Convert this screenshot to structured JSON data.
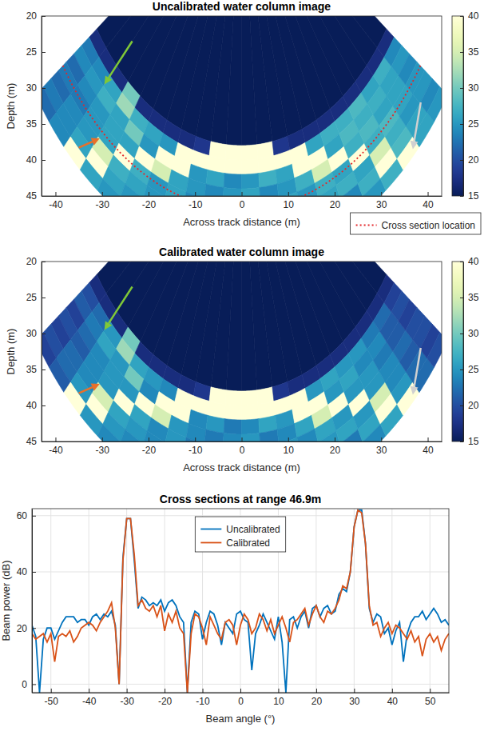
{
  "chart_data": [
    {
      "type": "heatmap",
      "title": "Uncalibrated water column image",
      "x_label": "Across track distance (m)",
      "y_label": "Depth (m)",
      "xlim": [
        -43,
        43
      ],
      "ylim": [
        45,
        20
      ],
      "xticks": [
        -40,
        -30,
        -20,
        -10,
        0,
        10,
        20,
        30,
        40
      ],
      "yticks": [
        20,
        25,
        30,
        35,
        40,
        45
      ],
      "angle_bins": [
        -55,
        -50,
        -45,
        -40,
        -35,
        -30,
        -25,
        -20,
        -15,
        -10,
        -5,
        0,
        5,
        10,
        15,
        20,
        25,
        30,
        35,
        40,
        45,
        50,
        55
      ],
      "range_bins": [
        20,
        38,
        40,
        42,
        44,
        46,
        48,
        50,
        52,
        54
      ],
      "values": [
        [
          15,
          15,
          15,
          15,
          15,
          15,
          15,
          15,
          15,
          15,
          15,
          15,
          15,
          15,
          15,
          15,
          15,
          15,
          15,
          15,
          15,
          15
        ],
        [
          17,
          17,
          17,
          30,
          17,
          17,
          17,
          17,
          18,
          55,
          55,
          55,
          55,
          18,
          17,
          17,
          17,
          17,
          17,
          17,
          17,
          17
        ],
        [
          23,
          24,
          26,
          32,
          27,
          26,
          25,
          55,
          55,
          55,
          55,
          55,
          55,
          55,
          55,
          26,
          27,
          27,
          28,
          26,
          27,
          24
        ],
        [
          24,
          25,
          27,
          26,
          30,
          25,
          55,
          55,
          25,
          26,
          24,
          25,
          27,
          26,
          55,
          55,
          26,
          28,
          27,
          27,
          26,
          25
        ],
        [
          22,
          24,
          25,
          26,
          26,
          55,
          35,
          26,
          25,
          24,
          25,
          26,
          24,
          25,
          27,
          35,
          55,
          27,
          28,
          26,
          26,
          24
        ],
        [
          23,
          23,
          25,
          26,
          55,
          27,
          25,
          26,
          24,
          25,
          26,
          25,
          24,
          26,
          25,
          27,
          26,
          55,
          27,
          28,
          26,
          25
        ],
        [
          22,
          24,
          25,
          35,
          27,
          26,
          25,
          24,
          25,
          26,
          25,
          24,
          26,
          25,
          24,
          26,
          27,
          26,
          35,
          27,
          25,
          25
        ],
        [
          23,
          24,
          26,
          55,
          26,
          25,
          24,
          26,
          25,
          24,
          26,
          25,
          25,
          24,
          26,
          25,
          24,
          27,
          55,
          28,
          26,
          24
        ],
        [
          22,
          24,
          40,
          26,
          25,
          24,
          26,
          25,
          24,
          25,
          26,
          24,
          25,
          26,
          25,
          24,
          26,
          25,
          27,
          40,
          26,
          25
        ]
      ],
      "colorbar": {
        "range": [
          15,
          40
        ],
        "ticks": [
          15,
          20,
          25,
          30,
          35,
          40
        ]
      },
      "series": [
        {
          "name": "Cross section location",
          "type": "line",
          "line_style": "dotted",
          "color": "#e3262a",
          "range": 46.9
        }
      ],
      "legend": "below",
      "annotations": [
        {
          "x": -29.5,
          "y": 29.5,
          "xtail": -23.5,
          "ytail": 23.5,
          "color": "#80c838"
        },
        {
          "x": -30.5,
          "y": 37,
          "xtail": -35,
          "ytail": 38.3,
          "color": "#e8702a"
        },
        {
          "x": 36.8,
          "y": 38.5,
          "xtail": 38.5,
          "ytail": 32,
          "color": "#d0d0d0"
        }
      ]
    },
    {
      "type": "heatmap",
      "title": "Calibrated water column image",
      "x_label": "Across track distance (m)",
      "y_label": "Depth (m)",
      "xlim": [
        -43,
        43
      ],
      "ylim": [
        45,
        20
      ],
      "xticks": [
        -40,
        -30,
        -20,
        -10,
        0,
        10,
        20,
        30,
        40
      ],
      "yticks": [
        20,
        25,
        30,
        35,
        40,
        45
      ],
      "angle_bins": [
        -55,
        -50,
        -45,
        -40,
        -35,
        -30,
        -25,
        -20,
        -15,
        -10,
        -5,
        0,
        5,
        10,
        15,
        20,
        25,
        30,
        35,
        40,
        45,
        50,
        55
      ],
      "range_bins": [
        20,
        38,
        40,
        42,
        44,
        46,
        48,
        50,
        52,
        54
      ],
      "values": [
        [
          15,
          15,
          15,
          15,
          15,
          15,
          15,
          15,
          15,
          15,
          15,
          15,
          15,
          15,
          15,
          15,
          15,
          15,
          15,
          15,
          15,
          15
        ],
        [
          17,
          17,
          17,
          30,
          17,
          17,
          17,
          17,
          18,
          55,
          55,
          55,
          55,
          18,
          17,
          17,
          17,
          17,
          17,
          17,
          17,
          17
        ],
        [
          20,
          22,
          25,
          32,
          26,
          25,
          24,
          55,
          55,
          55,
          55,
          55,
          55,
          55,
          55,
          25,
          26,
          25,
          25,
          23,
          22,
          19
        ],
        [
          21,
          23,
          26,
          25,
          30,
          24,
          55,
          55,
          24,
          25,
          23,
          24,
          26,
          25,
          55,
          55,
          25,
          26,
          24,
          24,
          21,
          20
        ],
        [
          19,
          22,
          24,
          25,
          25,
          55,
          35,
          25,
          24,
          23,
          24,
          25,
          23,
          24,
          26,
          35,
          55,
          25,
          25,
          23,
          21,
          19
        ],
        [
          20,
          21,
          24,
          25,
          55,
          26,
          24,
          25,
          23,
          24,
          25,
          24,
          23,
          25,
          24,
          26,
          25,
          55,
          25,
          24,
          22,
          20
        ],
        [
          19,
          22,
          24,
          35,
          26,
          25,
          24,
          23,
          24,
          25,
          24,
          23,
          25,
          24,
          23,
          25,
          26,
          25,
          35,
          24,
          21,
          20
        ],
        [
          20,
          22,
          25,
          55,
          25,
          24,
          23,
          25,
          24,
          23,
          25,
          24,
          24,
          23,
          25,
          24,
          23,
          26,
          55,
          25,
          22,
          19
        ],
        [
          19,
          21,
          40,
          25,
          24,
          23,
          25,
          24,
          23,
          24,
          25,
          23,
          24,
          25,
          24,
          23,
          25,
          24,
          26,
          40,
          22,
          20
        ]
      ],
      "colorbar": {
        "range": [
          15,
          40
        ],
        "ticks": [
          15,
          20,
          25,
          30,
          35,
          40
        ]
      },
      "annotations": [
        {
          "x": -29.5,
          "y": 29.5,
          "xtail": -23.5,
          "ytail": 23.5,
          "color": "#80c838"
        },
        {
          "x": -30.5,
          "y": 37,
          "xtail": -35,
          "ytail": 38.3,
          "color": "#e8702a"
        },
        {
          "x": 36.8,
          "y": 38.5,
          "xtail": 38.5,
          "ytail": 32,
          "color": "#d0d0d0"
        }
      ]
    },
    {
      "type": "line",
      "title": "Cross sections at range 46.9m",
      "x_label": "Beam angle (°)",
      "y_label": "Beam power (dB)",
      "xlim": [
        -55,
        55
      ],
      "ylim": [
        -3,
        62.5
      ],
      "xticks": [
        -50,
        -40,
        -30,
        -20,
        -10,
        0,
        10,
        20,
        30,
        40,
        50
      ],
      "yticks": [
        0,
        20,
        40,
        60
      ],
      "grid": true,
      "legend": "upper center",
      "x": [
        -55,
        -54,
        -53,
        -52,
        -51,
        -50,
        -49,
        -48,
        -47,
        -46,
        -45,
        -44,
        -43,
        -42,
        -41,
        -40,
        -39,
        -38,
        -37,
        -36,
        -35,
        -34,
        -33,
        -32,
        -31,
        -30,
        -29,
        -28,
        -27,
        -26,
        -25,
        -24,
        -23,
        -22,
        -21,
        -20,
        -19,
        -18,
        -17,
        -16,
        -15,
        -14,
        -13,
        -12,
        -11,
        -10,
        -9,
        -8,
        -7,
        -6,
        -5,
        -4,
        -3,
        -2,
        -1,
        0,
        1,
        2,
        3,
        4,
        5,
        6,
        7,
        8,
        9,
        10,
        11,
        12,
        13,
        14,
        15,
        16,
        17,
        18,
        19,
        20,
        21,
        22,
        23,
        24,
        25,
        26,
        27,
        28,
        29,
        30,
        31,
        32,
        33,
        34,
        35,
        36,
        37,
        38,
        39,
        40,
        41,
        42,
        43,
        44,
        45,
        46,
        47,
        48,
        49,
        50,
        51,
        52,
        53,
        54,
        55
      ],
      "series": [
        {
          "name": "Uncalibrated",
          "color": "#0072bd",
          "values": [
            21,
            17,
            -3,
            16,
            20,
            20,
            16,
            19,
            22,
            24,
            24,
            24,
            22,
            23,
            23,
            21,
            24,
            25,
            23,
            25,
            24,
            26,
            21,
            0,
            45,
            59,
            59,
            44,
            27,
            31,
            30,
            28,
            29,
            28,
            30,
            26,
            29,
            30,
            28,
            24,
            22,
            -3,
            22,
            26,
            25,
            16,
            22,
            26,
            25,
            21,
            14,
            22,
            20,
            18,
            25,
            26,
            23,
            22,
            5,
            18,
            21,
            25,
            22,
            19,
            16,
            24,
            15,
            -3,
            23,
            24,
            20,
            24,
            26,
            20,
            27,
            28,
            24,
            27,
            28,
            25,
            26,
            32,
            34,
            33,
            40,
            56,
            62,
            62,
            50,
            27,
            22,
            25,
            24,
            18,
            20,
            14,
            19,
            22,
            8,
            18,
            22,
            24,
            24,
            26,
            23,
            25,
            27,
            25,
            22,
            23,
            21
          ]
        },
        {
          "name": "Calibrated",
          "color": "#d95319",
          "values": [
            18,
            16,
            17,
            18,
            15,
            18,
            8,
            17,
            18,
            17,
            19,
            15,
            17,
            20,
            21,
            22,
            21,
            19,
            22,
            24,
            26,
            29,
            20,
            0,
            44,
            59,
            59,
            46,
            28,
            30,
            27,
            26,
            28,
            24,
            28,
            19,
            25,
            22,
            26,
            20,
            18,
            -3,
            18,
            25,
            24,
            20,
            14,
            24,
            21,
            18,
            16,
            22,
            23,
            21,
            14,
            21,
            25,
            23,
            18,
            20,
            25,
            23,
            19,
            23,
            18,
            21,
            24,
            20,
            15,
            22,
            23,
            25,
            27,
            21,
            25,
            28,
            24,
            22,
            26,
            25,
            27,
            30,
            35,
            34,
            40,
            56,
            62,
            61,
            50,
            28,
            21,
            22,
            17,
            20,
            22,
            18,
            21,
            20,
            18,
            16,
            19,
            15,
            17,
            10,
            16,
            18,
            15,
            17,
            12,
            16,
            18
          ]
        }
      ]
    }
  ]
}
